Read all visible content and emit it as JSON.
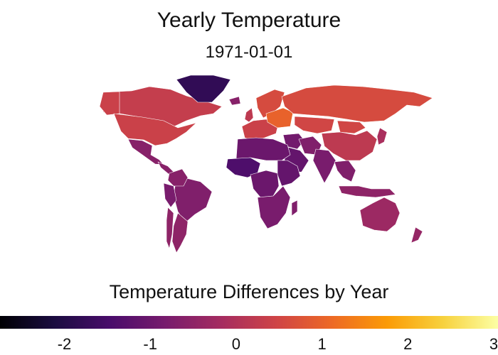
{
  "title": "Yearly Temperature",
  "subtitle": "1971-01-01",
  "legend": {
    "title": "Temperature Differences by Year",
    "ticks": [
      "-2",
      "-1",
      "0",
      "1",
      "2",
      "3"
    ],
    "range": [
      -2.75,
      3.05
    ],
    "palette": [
      "#000004",
      "#1b0c41",
      "#4a0c6b",
      "#781c6d",
      "#a52c60",
      "#cf4446",
      "#ed6925",
      "#fb9b06",
      "#f7d13d",
      "#fcffa4"
    ]
  },
  "chart_data": {
    "type": "choropleth",
    "title": "Yearly Temperature",
    "subtitle": "1971-01-01",
    "legend_title": "Temperature Differences by Year",
    "scale": {
      "min": -2.75,
      "max": 3.05,
      "palette": "inferno"
    },
    "regions": [
      {
        "name": "Canada",
        "value": 0.3
      },
      {
        "name": "Alaska",
        "value": 0.4
      },
      {
        "name": "United States",
        "value": 0.4
      },
      {
        "name": "Greenland",
        "value": -1.8
      },
      {
        "name": "Mexico",
        "value": -0.6
      },
      {
        "name": "Central America",
        "value": -0.6
      },
      {
        "name": "Brazil",
        "value": -0.7
      },
      {
        "name": "Argentina",
        "value": -0.5
      },
      {
        "name": "Chile",
        "value": -0.5
      },
      {
        "name": "Peru",
        "value": -0.8
      },
      {
        "name": "Colombia",
        "value": -0.6
      },
      {
        "name": "Iceland",
        "value": -0.6
      },
      {
        "name": "United Kingdom",
        "value": 0.2
      },
      {
        "name": "Scandinavia",
        "value": 0.6
      },
      {
        "name": "Western Europe",
        "value": 0.4
      },
      {
        "name": "Eastern Europe",
        "value": 1.0
      },
      {
        "name": "Russia",
        "value": 0.6
      },
      {
        "name": "Kazakhstan",
        "value": 0.5
      },
      {
        "name": "Mongolia",
        "value": 0.5
      },
      {
        "name": "China",
        "value": 0.2
      },
      {
        "name": "Middle East",
        "value": -0.9
      },
      {
        "name": "Arabian Peninsula",
        "value": -1.1
      },
      {
        "name": "Iran",
        "value": -0.7
      },
      {
        "name": "India",
        "value": -0.8
      },
      {
        "name": "Southeast Asia",
        "value": -0.7
      },
      {
        "name": "Japan",
        "value": -0.1
      },
      {
        "name": "Indonesia",
        "value": -0.5
      },
      {
        "name": "North Africa",
        "value": -1.0
      },
      {
        "name": "West Africa",
        "value": -1.4
      },
      {
        "name": "Central Africa",
        "value": -1.0
      },
      {
        "name": "East Africa",
        "value": -1.1
      },
      {
        "name": "Southern Africa",
        "value": -0.8
      },
      {
        "name": "Madagascar",
        "value": -0.7
      },
      {
        "name": "Australia",
        "value": -0.3
      },
      {
        "name": "New Zealand",
        "value": -0.4
      }
    ]
  }
}
